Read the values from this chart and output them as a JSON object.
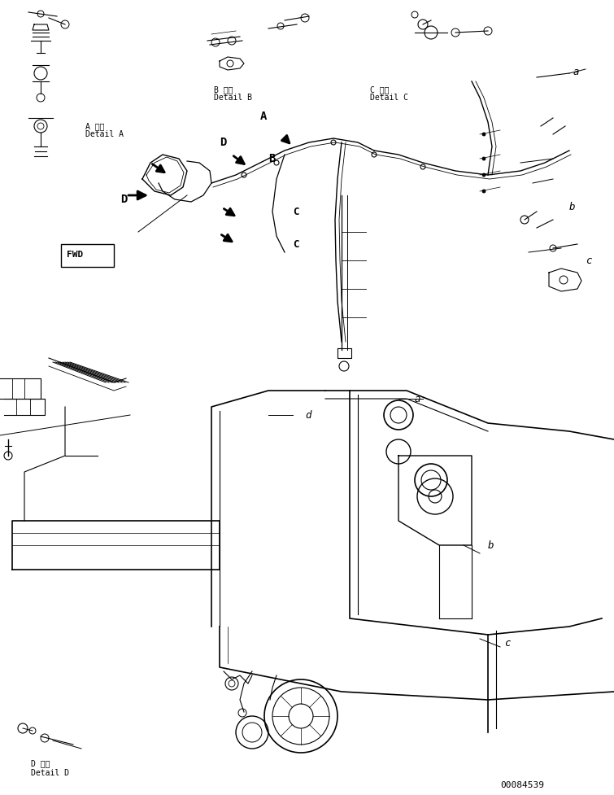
{
  "title": "",
  "background_color": "#ffffff",
  "line_color": "#000000",
  "figure_width": 7.55,
  "figure_height": 9.77,
  "dpi": 100,
  "part_number": "00084539",
  "labels": {
    "detail_a_jp": "A 詳細",
    "detail_a_en": "Detail A",
    "detail_b_jp": "B 詳細",
    "detail_b_en": "Detail B",
    "detail_c_jp": "C 詳細",
    "detail_c_en": "Detail C",
    "detail_d_jp": "D 詳細",
    "detail_d_en": "Detail D",
    "fwd": "FWD"
  },
  "callout_letters": [
    "A",
    "B",
    "C",
    "D",
    "a",
    "b",
    "c",
    "d"
  ]
}
